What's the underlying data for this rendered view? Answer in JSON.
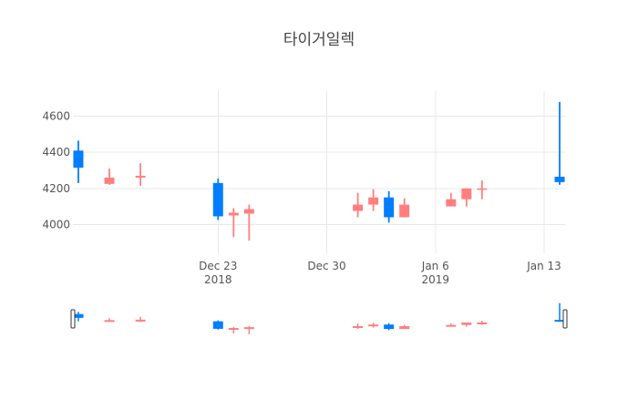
{
  "title": "타이거일렉",
  "colors": {
    "increasing": "#FF7F7F",
    "decreasing": "#007EFF",
    "grid": "#e8e8e8",
    "text": "#555555"
  },
  "chart_data": {
    "type": "candlestick",
    "title": "타이거일렉",
    "xlabel": "",
    "ylabel": "",
    "ylim": [
      3840,
      4740
    ],
    "xlim": [
      "2018-12-14",
      "2019-01-14"
    ],
    "yticks": [
      4000,
      4200,
      4400,
      4600
    ],
    "xticks": [
      {
        "date": "2018-12-23",
        "label": "Dec 23",
        "sublabel": "2018"
      },
      {
        "date": "2018-12-30",
        "label": "Dec 30",
        "sublabel": ""
      },
      {
        "date": "2019-01-06",
        "label": "Jan 6",
        "sublabel": "2019"
      },
      {
        "date": "2019-01-13",
        "label": "Jan 13",
        "sublabel": ""
      }
    ],
    "grid": true,
    "range_slider": true,
    "series": [
      {
        "date": "2018-12-14",
        "open": 4410,
        "high": 4465,
        "low": 4230,
        "close": 4315
      },
      {
        "date": "2018-12-16",
        "open": 4225,
        "high": 4310,
        "low": 4220,
        "close": 4260
      },
      {
        "date": "2018-12-18",
        "open": 4260,
        "high": 4340,
        "low": 4215,
        "close": 4270
      },
      {
        "date": "2018-12-23",
        "open": 4230,
        "high": 4255,
        "low": 4025,
        "close": 4045
      },
      {
        "date": "2018-12-24",
        "open": 4050,
        "high": 4090,
        "low": 3930,
        "close": 4065
      },
      {
        "date": "2018-12-25",
        "open": 4060,
        "high": 4110,
        "low": 3910,
        "close": 4085
      },
      {
        "date": "2019-01-01",
        "open": 4075,
        "high": 4175,
        "low": 4040,
        "close": 4110
      },
      {
        "date": "2019-01-02",
        "open": 4110,
        "high": 4195,
        "low": 4075,
        "close": 4150
      },
      {
        "date": "2019-01-03",
        "open": 4150,
        "high": 4185,
        "low": 4010,
        "close": 4040
      },
      {
        "date": "2019-01-04",
        "open": 4040,
        "high": 4145,
        "low": 4040,
        "close": 4110
      },
      {
        "date": "2019-01-07",
        "open": 4100,
        "high": 4175,
        "low": 4100,
        "close": 4140
      },
      {
        "date": "2019-01-08",
        "open": 4140,
        "high": 4200,
        "low": 4100,
        "close": 4200
      },
      {
        "date": "2019-01-09",
        "open": 4195,
        "high": 4245,
        "low": 4140,
        "close": 4200
      },
      {
        "date": "2019-01-14",
        "open": 4265,
        "high": 4680,
        "low": 4220,
        "close": 4235
      }
    ]
  }
}
